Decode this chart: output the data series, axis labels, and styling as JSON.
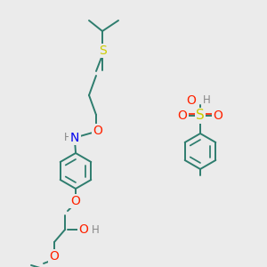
{
  "bg_color": "#ebebeb",
  "bond_color": "#2e7d6e",
  "bond_width": 1.4,
  "atom_colors": {
    "S": "#cccc00",
    "O": "#ff2200",
    "N": "#0000ee",
    "H": "#888888",
    "C": "#2e7d6e"
  },
  "font_size": 8.5,
  "fig_width": 3.0,
  "fig_height": 3.0,
  "dpi": 100
}
